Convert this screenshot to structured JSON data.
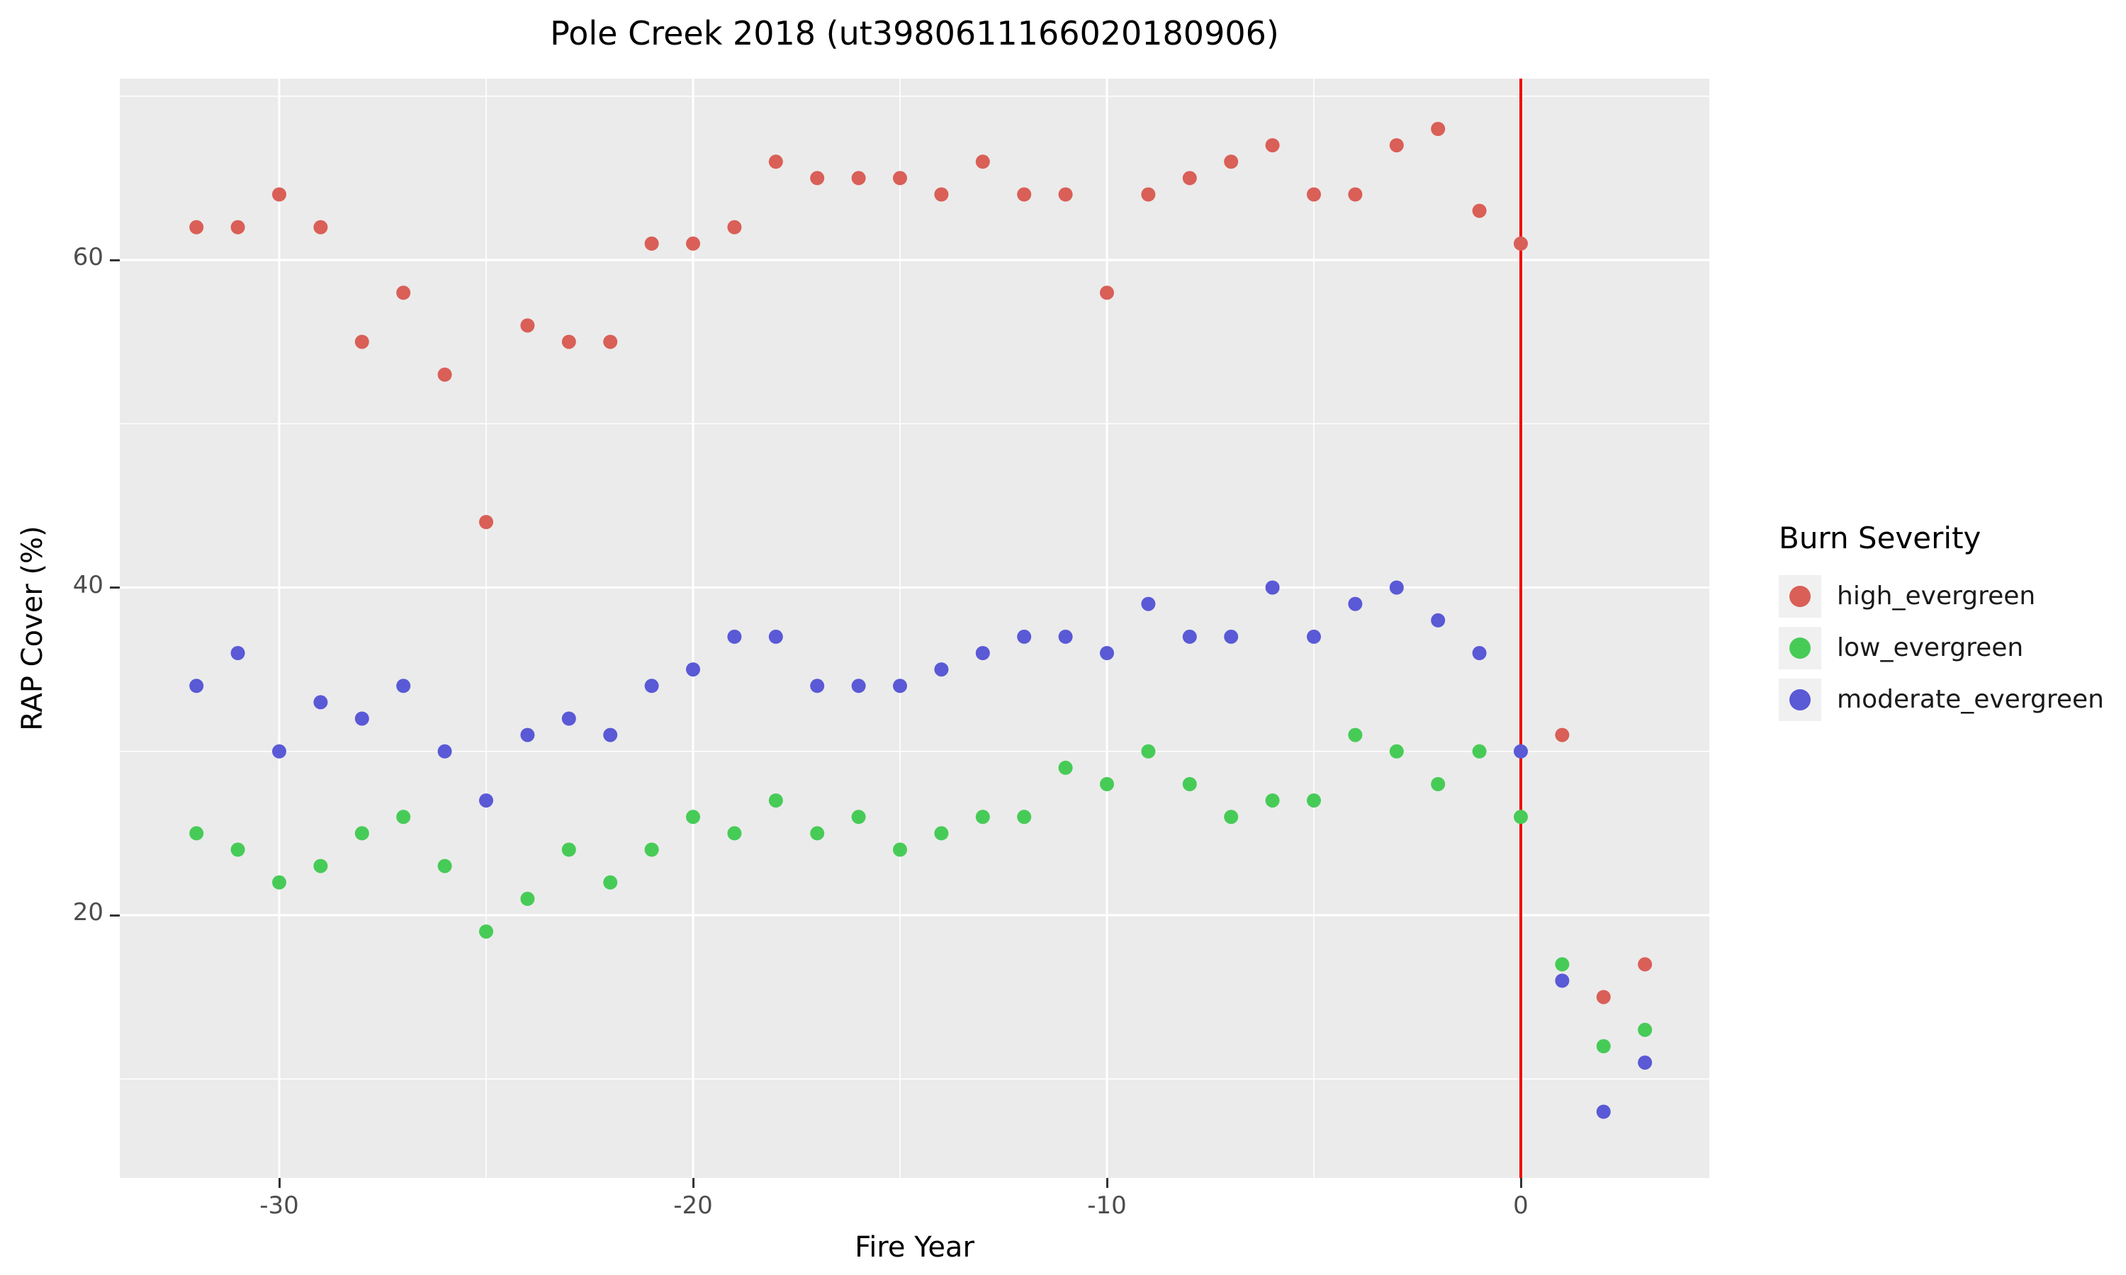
{
  "title": "Pole Creek 2018 (ut3980611166020180906)",
  "legend": {
    "title": "Burn Severity"
  },
  "chart_data": {
    "type": "scatter",
    "title": "Pole Creek 2018 (ut3980611166020180906)",
    "xlabel": "Fire Year",
    "ylabel": "RAP Cover (%)",
    "x": [
      -32,
      -31,
      -30,
      -29,
      -28,
      -27,
      -26,
      -25,
      -24,
      -23,
      -22,
      -21,
      -20,
      -19,
      -18,
      -17,
      -16,
      -15,
      -14,
      -13,
      -12,
      -11,
      -10,
      -9,
      -8,
      -7,
      -6,
      -5,
      -4,
      -3,
      -2,
      -1,
      0,
      1,
      2,
      3
    ],
    "series": [
      {
        "name": "high_evergreen",
        "color": "#d95f57",
        "values": [
          62,
          62,
          64,
          62,
          55,
          58,
          53,
          44,
          56,
          55,
          55,
          61,
          61,
          62,
          66,
          65,
          65,
          65,
          64,
          66,
          64,
          64,
          58,
          64,
          65,
          66,
          67,
          64,
          64,
          67,
          68,
          63,
          61,
          31,
          15,
          17
        ]
      },
      {
        "name": "low_evergreen",
        "color": "#47cb57",
        "values": [
          25,
          24,
          22,
          23,
          25,
          26,
          23,
          19,
          21,
          24,
          22,
          24,
          26,
          25,
          27,
          25,
          26,
          24,
          25,
          26,
          26,
          29,
          28,
          30,
          28,
          26,
          27,
          27,
          31,
          30,
          28,
          30,
          26,
          17,
          12,
          13
        ]
      },
      {
        "name": "moderate_evergreen",
        "color": "#5a59d6",
        "values": [
          34,
          36,
          30,
          33,
          32,
          34,
          30,
          27,
          31,
          32,
          31,
          34,
          35,
          37,
          37,
          34,
          34,
          34,
          35,
          36,
          37,
          37,
          36,
          39,
          37,
          37,
          40,
          37,
          39,
          40,
          38,
          36,
          30,
          16,
          8,
          11
        ]
      }
    ],
    "x_ticks": [
      -30,
      -20,
      -10,
      0
    ],
    "y_ticks": [
      20,
      40,
      60
    ],
    "x_minor_ticks": [
      -25,
      -15,
      -5
    ],
    "y_minor_ticks": [
      10,
      30,
      50,
      70
    ],
    "xlim": [
      -33.8,
      4.6
    ],
    "ylim": [
      4.0,
      71.1
    ],
    "grid": "major+minor",
    "legend_position": "right",
    "legend_title": "Burn Severity",
    "vline": {
      "x": 0,
      "color": "#f20d0d"
    },
    "point_radius_px": 10,
    "panel_background": "#ebebeb",
    "gridline_color": "#ffffff"
  }
}
